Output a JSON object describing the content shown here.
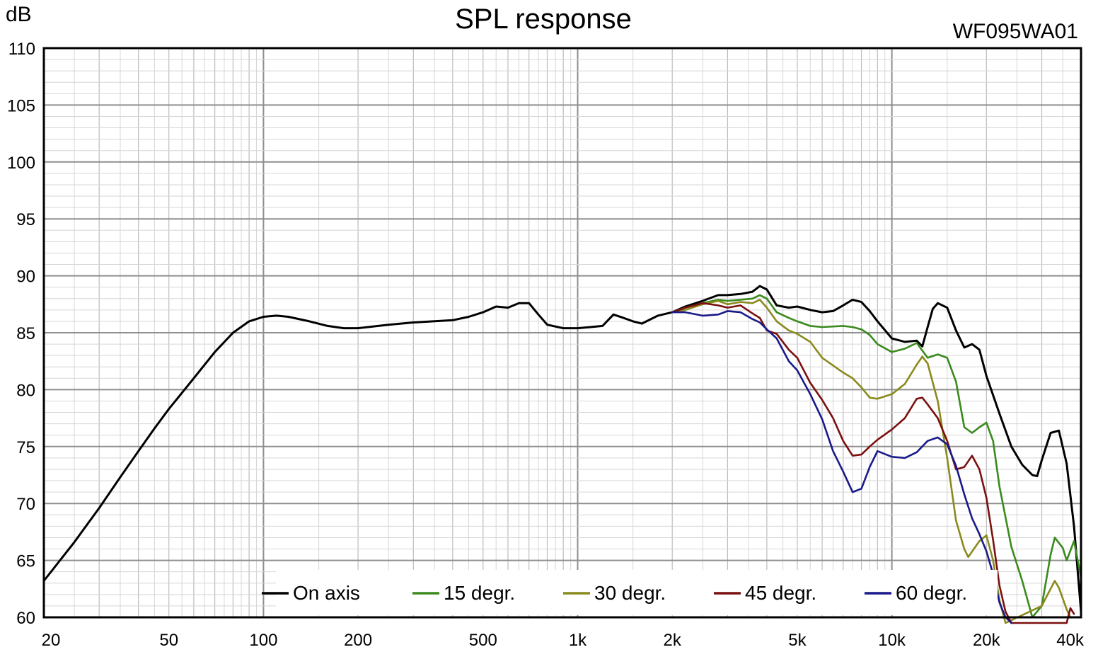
{
  "chart_data": {
    "type": "line",
    "title": "SPL response",
    "model": "WF095WA01",
    "ylabel": "dB",
    "xlabel": "",
    "x_scale": "log",
    "xlim": [
      20,
      40000
    ],
    "ylim": [
      60,
      110
    ],
    "grid": true,
    "legend_position": "bottom-center",
    "x_tick_values": [
      20,
      50,
      100,
      200,
      500,
      1000,
      2000,
      5000,
      10000,
      20000,
      40000
    ],
    "x_tick_labels": [
      "20",
      "50",
      "100",
      "200",
      "500",
      "1k",
      "2k",
      "5k",
      "10k",
      "20k",
      "40k"
    ],
    "y_tick_values": [
      60,
      65,
      70,
      75,
      80,
      85,
      90,
      95,
      100,
      105,
      110
    ],
    "y_tick_labels": [
      "60",
      "65",
      "70",
      "75",
      "80",
      "85",
      "90",
      "95",
      "100",
      "105",
      "110"
    ],
    "series": [
      {
        "name": "On axis",
        "color": "#000000",
        "points": [
          [
            20,
            63.2
          ],
          [
            25,
            66.6
          ],
          [
            30,
            69.6
          ],
          [
            35,
            72.3
          ],
          [
            40,
            74.6
          ],
          [
            45,
            76.6
          ],
          [
            50,
            78.3
          ],
          [
            60,
            81.0
          ],
          [
            70,
            83.3
          ],
          [
            80,
            85.0
          ],
          [
            90,
            86.0
          ],
          [
            100,
            86.4
          ],
          [
            110,
            86.5
          ],
          [
            120,
            86.4
          ],
          [
            140,
            86.0
          ],
          [
            160,
            85.6
          ],
          [
            180,
            85.4
          ],
          [
            200,
            85.4
          ],
          [
            250,
            85.7
          ],
          [
            300,
            85.9
          ],
          [
            400,
            86.1
          ],
          [
            450,
            86.4
          ],
          [
            500,
            86.8
          ],
          [
            550,
            87.3
          ],
          [
            600,
            87.2
          ],
          [
            650,
            87.6
          ],
          [
            700,
            87.6
          ],
          [
            750,
            86.6
          ],
          [
            800,
            85.7
          ],
          [
            900,
            85.4
          ],
          [
            1000,
            85.4
          ],
          [
            1100,
            85.5
          ],
          [
            1200,
            85.6
          ],
          [
            1300,
            86.6
          ],
          [
            1400,
            86.3
          ],
          [
            1500,
            86.0
          ],
          [
            1600,
            85.8
          ],
          [
            1800,
            86.5
          ],
          [
            2000,
            86.8
          ],
          [
            2200,
            87.3
          ],
          [
            2500,
            87.8
          ],
          [
            2800,
            88.3
          ],
          [
            3000,
            88.3
          ],
          [
            3300,
            88.4
          ],
          [
            3600,
            88.6
          ],
          [
            3800,
            89.1
          ],
          [
            4000,
            88.8
          ],
          [
            4300,
            87.4
          ],
          [
            4700,
            87.2
          ],
          [
            5000,
            87.3
          ],
          [
            5500,
            87.0
          ],
          [
            6000,
            86.8
          ],
          [
            6500,
            86.9
          ],
          [
            7000,
            87.4
          ],
          [
            7500,
            87.9
          ],
          [
            8000,
            87.7
          ],
          [
            8500,
            86.9
          ],
          [
            9000,
            86.0
          ],
          [
            10000,
            84.5
          ],
          [
            11000,
            84.2
          ],
          [
            12000,
            84.3
          ],
          [
            12500,
            83.8
          ],
          [
            13000,
            85.5
          ],
          [
            13500,
            87.1
          ],
          [
            14000,
            87.6
          ],
          [
            15000,
            87.2
          ],
          [
            16000,
            85.2
          ],
          [
            17000,
            83.7
          ],
          [
            18000,
            84.0
          ],
          [
            19000,
            83.5
          ],
          [
            20000,
            81.2
          ],
          [
            22000,
            77.9
          ],
          [
            24000,
            75.0
          ],
          [
            26000,
            73.4
          ],
          [
            28000,
            72.5
          ],
          [
            29000,
            72.4
          ],
          [
            30000,
            73.8
          ],
          [
            32000,
            76.2
          ],
          [
            34000,
            76.4
          ],
          [
            36000,
            73.5
          ],
          [
            38000,
            68.0
          ],
          [
            40000,
            60.5
          ]
        ]
      },
      {
        "name": "15 degr.",
        "color": "#3a8a1e",
        "points": [
          [
            2000,
            86.8
          ],
          [
            2200,
            87.2
          ],
          [
            2500,
            87.6
          ],
          [
            2800,
            87.9
          ],
          [
            3000,
            87.8
          ],
          [
            3300,
            87.9
          ],
          [
            3600,
            88.0
          ],
          [
            3800,
            88.3
          ],
          [
            4000,
            88.0
          ],
          [
            4300,
            86.8
          ],
          [
            4700,
            86.3
          ],
          [
            5000,
            86.0
          ],
          [
            5500,
            85.6
          ],
          [
            6000,
            85.5
          ],
          [
            7000,
            85.6
          ],
          [
            7500,
            85.5
          ],
          [
            8000,
            85.3
          ],
          [
            8500,
            84.8
          ],
          [
            9000,
            84.0
          ],
          [
            10000,
            83.3
          ],
          [
            11000,
            83.6
          ],
          [
            12000,
            84.1
          ],
          [
            13000,
            82.8
          ],
          [
            14000,
            83.1
          ],
          [
            15000,
            82.8
          ],
          [
            16000,
            80.7
          ],
          [
            17000,
            76.7
          ],
          [
            18000,
            76.2
          ],
          [
            19000,
            76.7
          ],
          [
            20000,
            77.1
          ],
          [
            21000,
            75.5
          ],
          [
            22000,
            71.5
          ],
          [
            24000,
            66.2
          ],
          [
            26000,
            63.2
          ],
          [
            28000,
            60.0
          ],
          [
            30000,
            61.0
          ],
          [
            32000,
            65.5
          ],
          [
            33000,
            67.0
          ],
          [
            35000,
            66.1
          ],
          [
            36000,
            65.0
          ],
          [
            38000,
            66.7
          ],
          [
            40000,
            63.5
          ]
        ]
      },
      {
        "name": "30 degr.",
        "color": "#8a8a1e",
        "points": [
          [
            2000,
            86.8
          ],
          [
            2200,
            87.0
          ],
          [
            2500,
            87.5
          ],
          [
            2800,
            87.8
          ],
          [
            3000,
            87.5
          ],
          [
            3300,
            87.7
          ],
          [
            3600,
            87.6
          ],
          [
            3800,
            87.9
          ],
          [
            4000,
            87.2
          ],
          [
            4300,
            86.0
          ],
          [
            4700,
            85.2
          ],
          [
            5000,
            84.9
          ],
          [
            5500,
            84.2
          ],
          [
            6000,
            82.8
          ],
          [
            7000,
            81.5
          ],
          [
            7500,
            81.0
          ],
          [
            8000,
            80.2
          ],
          [
            8500,
            79.3
          ],
          [
            9000,
            79.2
          ],
          [
            10000,
            79.6
          ],
          [
            11000,
            80.5
          ],
          [
            12000,
            82.2
          ],
          [
            12500,
            82.9
          ],
          [
            13000,
            82.3
          ],
          [
            14000,
            79.0
          ],
          [
            15000,
            74.0
          ],
          [
            16000,
            68.5
          ],
          [
            17000,
            66.0
          ],
          [
            17500,
            65.3
          ],
          [
            19000,
            66.7
          ],
          [
            20000,
            67.2
          ],
          [
            21000,
            65.0
          ],
          [
            22000,
            61.5
          ],
          [
            23000,
            59.5
          ],
          [
            30000,
            61.0
          ],
          [
            32000,
            62.5
          ],
          [
            33000,
            63.2
          ],
          [
            34000,
            62.6
          ],
          [
            36000,
            60.7
          ],
          [
            37000,
            60.0
          ]
        ]
      },
      {
        "name": "45 degr.",
        "color": "#7a1010",
        "points": [
          [
            2000,
            86.8
          ],
          [
            2200,
            87.2
          ],
          [
            2500,
            87.6
          ],
          [
            2800,
            87.4
          ],
          [
            3000,
            87.2
          ],
          [
            3300,
            87.4
          ],
          [
            3600,
            86.7
          ],
          [
            3800,
            86.3
          ],
          [
            4000,
            85.2
          ],
          [
            4300,
            84.9
          ],
          [
            4700,
            83.5
          ],
          [
            5000,
            82.8
          ],
          [
            5500,
            80.6
          ],
          [
            6000,
            79.1
          ],
          [
            6500,
            77.5
          ],
          [
            7000,
            75.5
          ],
          [
            7500,
            74.2
          ],
          [
            8000,
            74.3
          ],
          [
            8500,
            75.0
          ],
          [
            9000,
            75.6
          ],
          [
            10000,
            76.5
          ],
          [
            11000,
            77.5
          ],
          [
            12000,
            79.2
          ],
          [
            12500,
            79.3
          ],
          [
            13000,
            78.7
          ],
          [
            14000,
            77.5
          ],
          [
            15000,
            75.5
          ],
          [
            16000,
            73.0
          ],
          [
            17000,
            73.2
          ],
          [
            18000,
            74.2
          ],
          [
            19000,
            73.0
          ],
          [
            20000,
            70.5
          ],
          [
            21000,
            66.8
          ],
          [
            22000,
            62.8
          ],
          [
            23000,
            60.5
          ],
          [
            24000,
            59.5
          ],
          [
            36000,
            59.5
          ],
          [
            37000,
            60.8
          ],
          [
            38000,
            60.3
          ]
        ]
      },
      {
        "name": "60 degr.",
        "color": "#1a1a8a",
        "points": [
          [
            2000,
            86.8
          ],
          [
            2200,
            86.8
          ],
          [
            2500,
            86.5
          ],
          [
            2800,
            86.6
          ],
          [
            3000,
            86.9
          ],
          [
            3300,
            86.8
          ],
          [
            3600,
            86.2
          ],
          [
            3800,
            85.9
          ],
          [
            4000,
            85.3
          ],
          [
            4300,
            84.5
          ],
          [
            4700,
            82.5
          ],
          [
            5000,
            81.7
          ],
          [
            5500,
            79.6
          ],
          [
            6000,
            77.4
          ],
          [
            6500,
            74.6
          ],
          [
            7000,
            72.8
          ],
          [
            7500,
            71.0
          ],
          [
            8000,
            71.3
          ],
          [
            8500,
            73.2
          ],
          [
            9000,
            74.6
          ],
          [
            10000,
            74.1
          ],
          [
            11000,
            74.0
          ],
          [
            12000,
            74.5
          ],
          [
            13000,
            75.5
          ],
          [
            14000,
            75.8
          ],
          [
            15000,
            75.2
          ],
          [
            16000,
            73.3
          ],
          [
            17000,
            70.8
          ],
          [
            18000,
            68.7
          ],
          [
            19000,
            67.3
          ],
          [
            20000,
            65.8
          ],
          [
            21000,
            63.8
          ],
          [
            22000,
            61.3
          ],
          [
            23000,
            60.0
          ],
          [
            24000,
            59.5
          ]
        ]
      }
    ]
  }
}
